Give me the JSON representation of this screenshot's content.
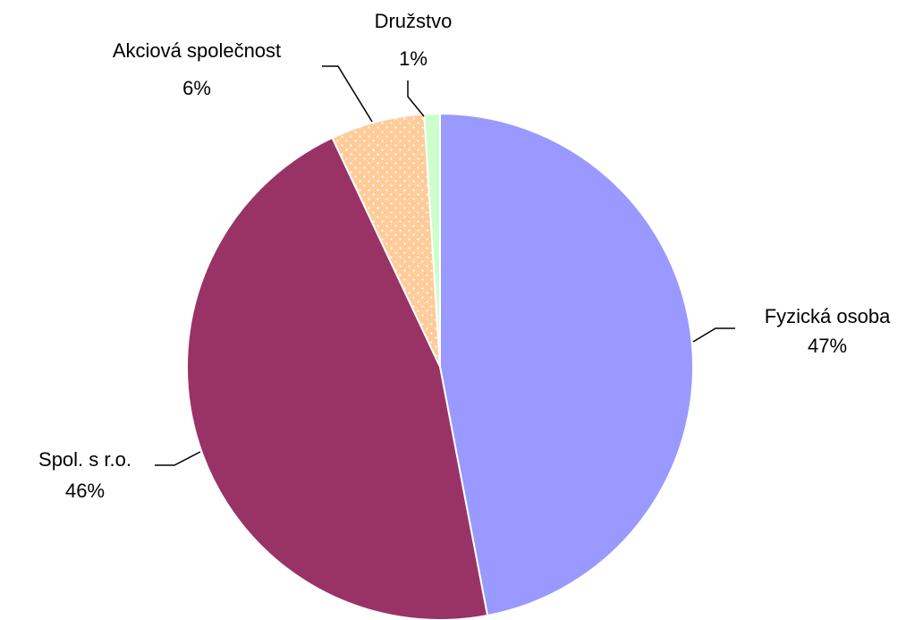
{
  "chart_data": {
    "type": "pie",
    "categories": [
      "Fyzická osoba",
      "Spol. s r.o.",
      "Akciová společnost",
      "Družstvo"
    ],
    "values": [
      47,
      46,
      6,
      1
    ],
    "value_labels": [
      "47%",
      "46%",
      "6%",
      "1%"
    ],
    "colors": [
      "#9999ff",
      "#993366",
      "#ffcc99",
      "#ccffcc"
    ]
  }
}
